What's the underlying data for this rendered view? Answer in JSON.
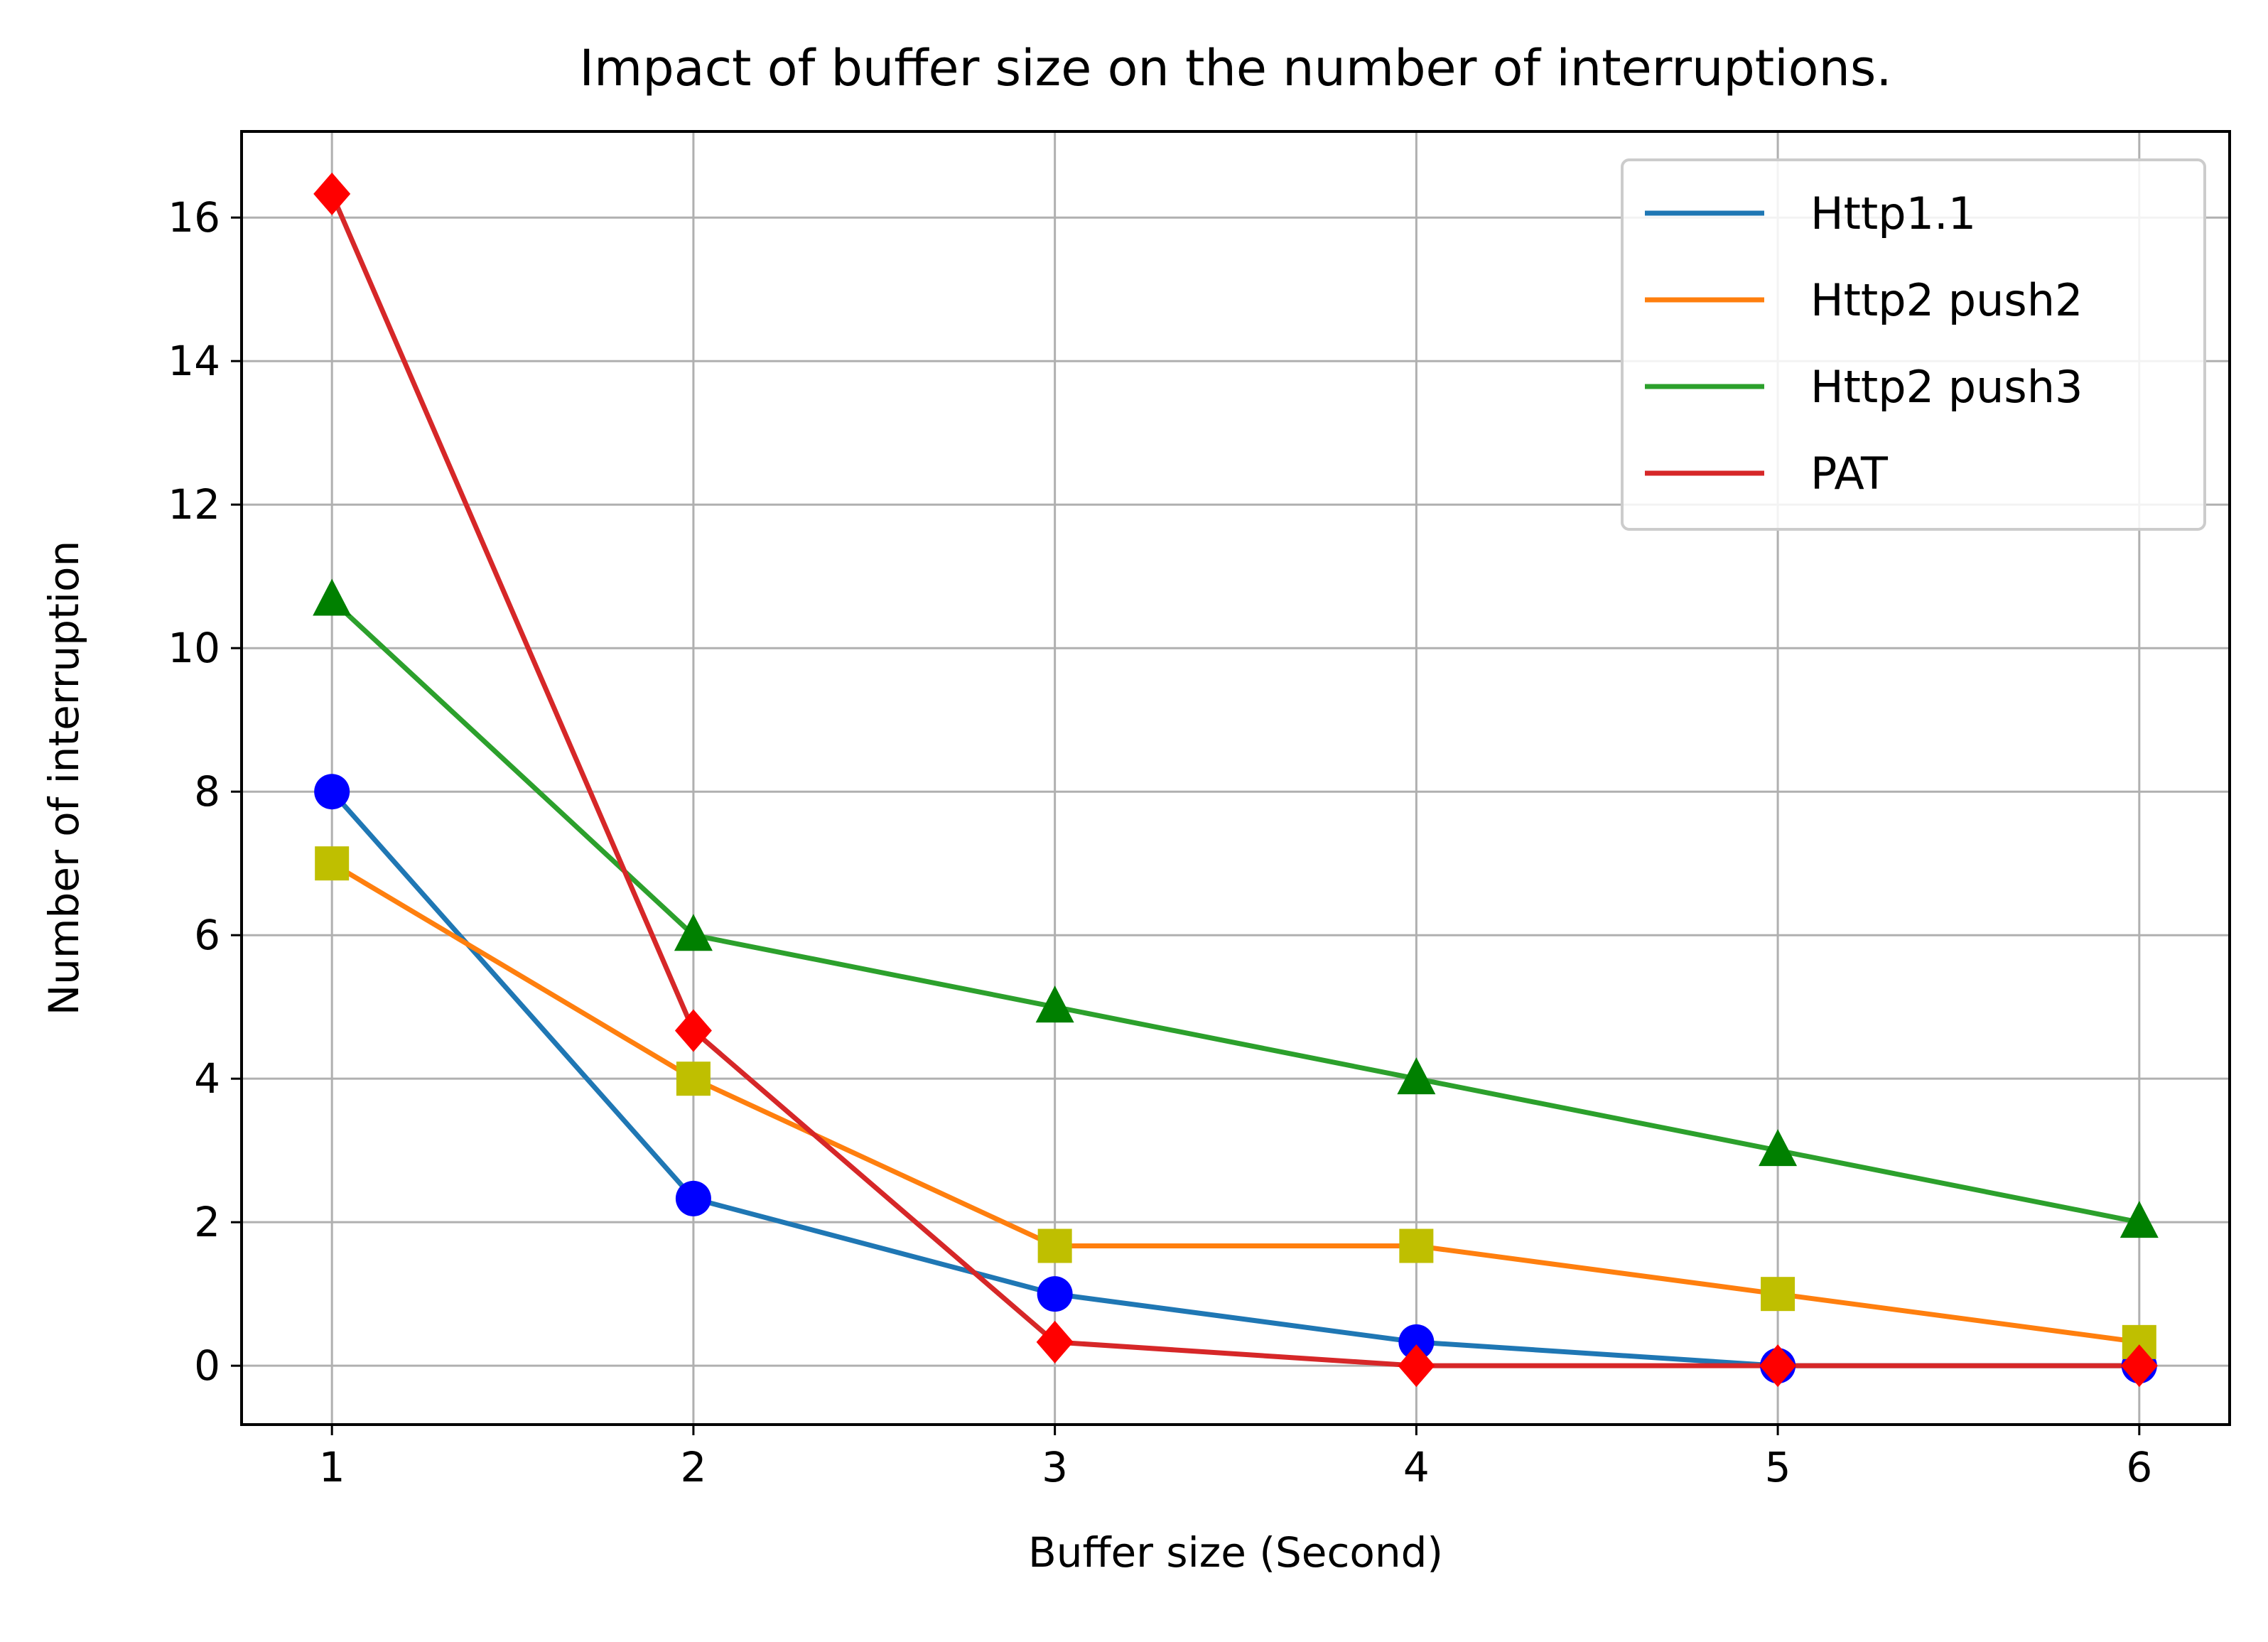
{
  "chart_data": {
    "type": "line",
    "title": "Impact of buffer size on the number of interruptions.",
    "xlabel": "Buffer size (Second)",
    "ylabel": "Number of interruption",
    "x": [
      1,
      2,
      3,
      4,
      5,
      6
    ],
    "xlim": [
      0.75,
      6.25
    ],
    "ylim": [
      -0.82,
      17.2
    ],
    "xticks": [
      1,
      2,
      3,
      4,
      5,
      6
    ],
    "yticks": [
      0,
      2,
      4,
      6,
      8,
      10,
      12,
      14,
      16
    ],
    "grid": true,
    "legend_position": "top-right",
    "series": [
      {
        "name": "Http1.1",
        "values": [
          8,
          2.33,
          1,
          0.33,
          0,
          0
        ],
        "line_color": "#1f77b4",
        "marker": "circle",
        "marker_color": "#0000ff"
      },
      {
        "name": "Http2 push2",
        "values": [
          7,
          4,
          1.67,
          1.67,
          1,
          0.33
        ],
        "line_color": "#ff7f0e",
        "marker": "square",
        "marker_color": "#bfbf00"
      },
      {
        "name": "Http2 push3",
        "values": [
          10.67,
          6,
          5,
          4,
          3,
          2
        ],
        "line_color": "#2ca02c",
        "marker": "triangle",
        "marker_color": "#008000"
      },
      {
        "name": "PAT",
        "values": [
          16.33,
          4.67,
          0.33,
          0,
          0,
          0
        ],
        "line_color": "#d62728",
        "marker": "diamond",
        "marker_color": "#ff0000"
      }
    ]
  }
}
